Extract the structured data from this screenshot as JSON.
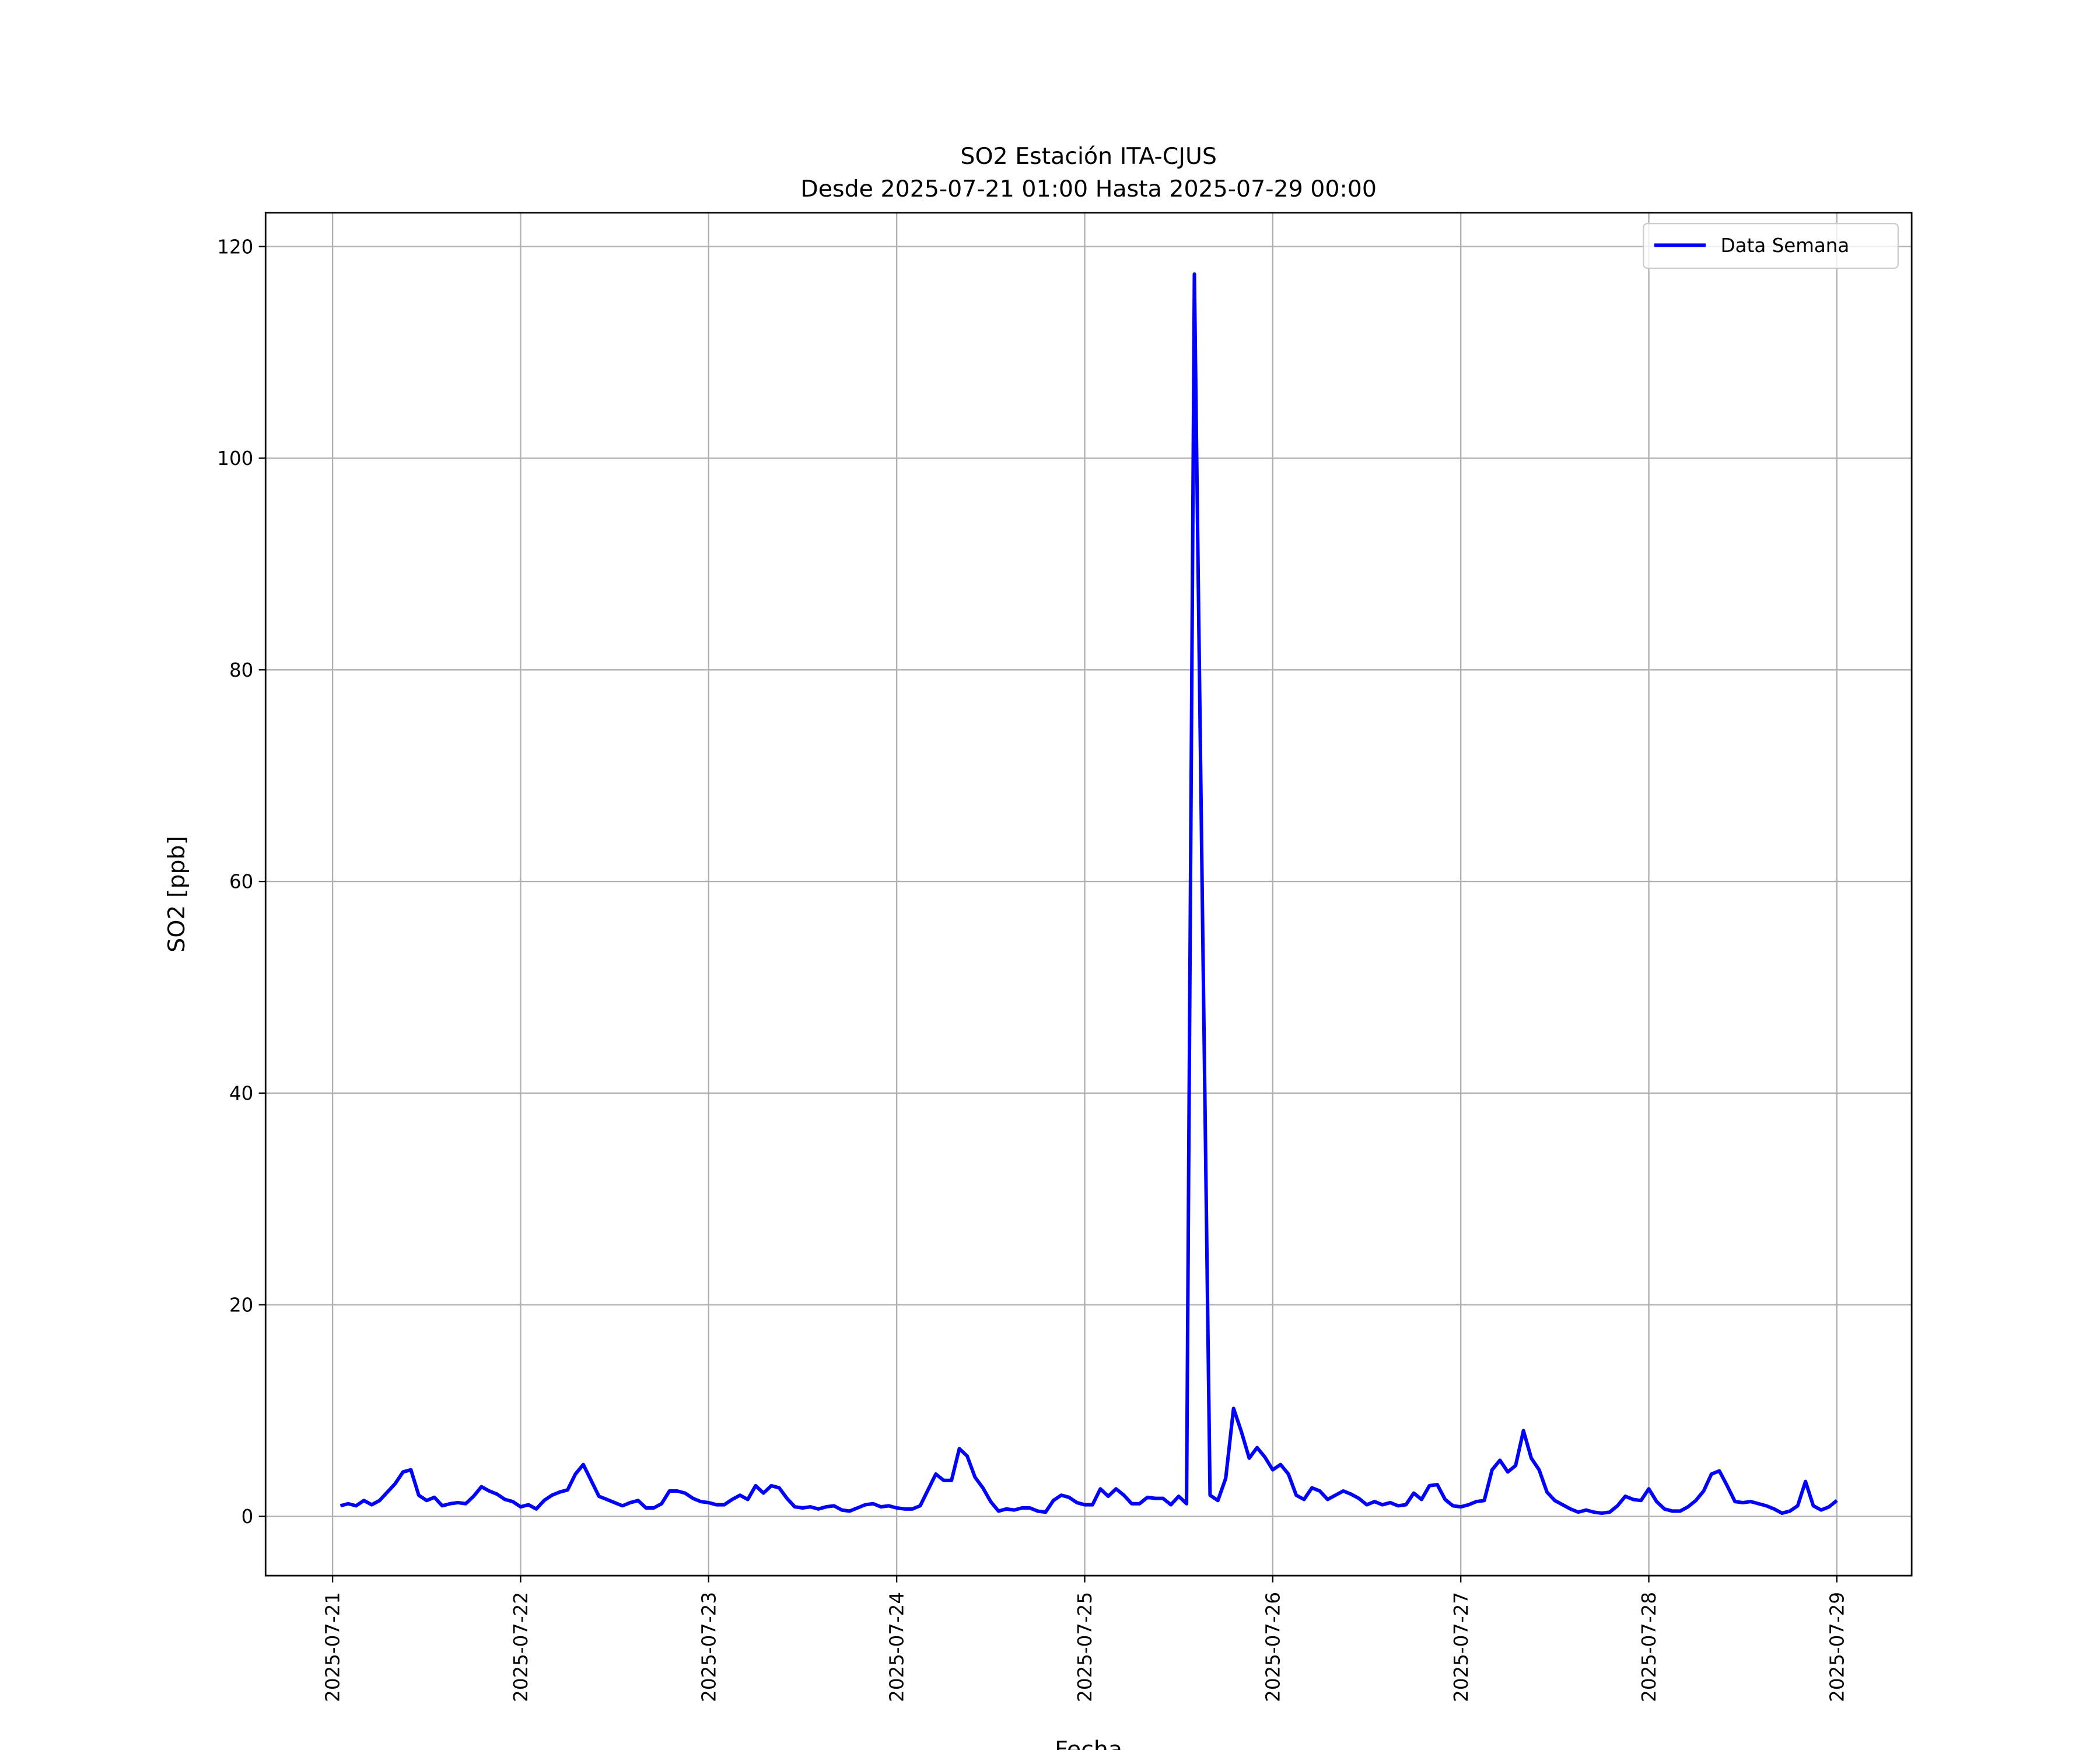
{
  "chart_data": {
    "type": "line",
    "title": "SO2 Estación ITA-CJUS",
    "subtitle": "Desde 2025-07-21 01:00 Hasta 2025-07-29 00:00",
    "x_label": "Fecha",
    "y_label": "SO2 [ppb]",
    "legend": "upper right",
    "grid": true,
    "xlim": [
      "2025-07-20 15:27",
      "2025-07-29 09:33"
    ],
    "xticks": [
      "2025-07-21",
      "2025-07-22",
      "2025-07-23",
      "2025-07-24",
      "2025-07-25",
      "2025-07-26",
      "2025-07-27",
      "2025-07-28",
      "2025-07-29"
    ],
    "ylim": [
      -5.6,
      123.2
    ],
    "yticks": [
      0,
      20,
      40,
      60,
      80,
      100,
      120
    ],
    "x": [
      "2025-07-21 01:00",
      "2025-07-21 02:00",
      "2025-07-21 03:00",
      "2025-07-21 04:00",
      "2025-07-21 05:00",
      "2025-07-21 06:00",
      "2025-07-21 07:00",
      "2025-07-21 08:00",
      "2025-07-21 09:00",
      "2025-07-21 10:00",
      "2025-07-21 11:00",
      "2025-07-21 12:00",
      "2025-07-21 13:00",
      "2025-07-21 14:00",
      "2025-07-21 15:00",
      "2025-07-21 16:00",
      "2025-07-21 17:00",
      "2025-07-21 18:00",
      "2025-07-21 19:00",
      "2025-07-21 20:00",
      "2025-07-21 21:00",
      "2025-07-21 22:00",
      "2025-07-21 23:00",
      "2025-07-22 00:00",
      "2025-07-22 01:00",
      "2025-07-22 02:00",
      "2025-07-22 03:00",
      "2025-07-22 04:00",
      "2025-07-22 05:00",
      "2025-07-22 06:00",
      "2025-07-22 07:00",
      "2025-07-22 08:00",
      "2025-07-22 09:00",
      "2025-07-22 10:00",
      "2025-07-22 11:00",
      "2025-07-22 12:00",
      "2025-07-22 13:00",
      "2025-07-22 14:00",
      "2025-07-22 15:00",
      "2025-07-22 16:00",
      "2025-07-22 17:00",
      "2025-07-22 18:00",
      "2025-07-22 19:00",
      "2025-07-22 20:00",
      "2025-07-22 21:00",
      "2025-07-22 22:00",
      "2025-07-22 23:00",
      "2025-07-23 00:00",
      "2025-07-23 01:00",
      "2025-07-23 02:00",
      "2025-07-23 03:00",
      "2025-07-23 04:00",
      "2025-07-23 05:00",
      "2025-07-23 06:00",
      "2025-07-23 07:00",
      "2025-07-23 08:00",
      "2025-07-23 09:00",
      "2025-07-23 10:00",
      "2025-07-23 11:00",
      "2025-07-23 12:00",
      "2025-07-23 13:00",
      "2025-07-23 14:00",
      "2025-07-23 15:00",
      "2025-07-23 16:00",
      "2025-07-23 17:00",
      "2025-07-23 18:00",
      "2025-07-23 19:00",
      "2025-07-23 20:00",
      "2025-07-23 21:00",
      "2025-07-23 22:00",
      "2025-07-23 23:00",
      "2025-07-24 00:00",
      "2025-07-24 01:00",
      "2025-07-24 02:00",
      "2025-07-24 03:00",
      "2025-07-24 04:00",
      "2025-07-24 05:00",
      "2025-07-24 06:00",
      "2025-07-24 07:00",
      "2025-07-24 08:00",
      "2025-07-24 09:00",
      "2025-07-24 10:00",
      "2025-07-24 11:00",
      "2025-07-24 12:00",
      "2025-07-24 13:00",
      "2025-07-24 14:00",
      "2025-07-24 15:00",
      "2025-07-24 16:00",
      "2025-07-24 17:00",
      "2025-07-24 18:00",
      "2025-07-24 19:00",
      "2025-07-24 20:00",
      "2025-07-24 21:00",
      "2025-07-24 22:00",
      "2025-07-24 23:00",
      "2025-07-25 00:00",
      "2025-07-25 01:00",
      "2025-07-25 02:00",
      "2025-07-25 03:00",
      "2025-07-25 04:00",
      "2025-07-25 05:00",
      "2025-07-25 06:00",
      "2025-07-25 07:00",
      "2025-07-25 08:00",
      "2025-07-25 09:00",
      "2025-07-25 10:00",
      "2025-07-25 11:00",
      "2025-07-25 12:00",
      "2025-07-25 13:00",
      "2025-07-25 14:00",
      "2025-07-25 15:00",
      "2025-07-25 16:00",
      "2025-07-25 17:00",
      "2025-07-25 18:00",
      "2025-07-25 19:00",
      "2025-07-25 20:00",
      "2025-07-25 21:00",
      "2025-07-25 22:00",
      "2025-07-25 23:00",
      "2025-07-26 00:00",
      "2025-07-26 01:00",
      "2025-07-26 02:00",
      "2025-07-26 03:00",
      "2025-07-26 04:00",
      "2025-07-26 05:00",
      "2025-07-26 06:00",
      "2025-07-26 07:00",
      "2025-07-26 08:00",
      "2025-07-26 09:00",
      "2025-07-26 10:00",
      "2025-07-26 11:00",
      "2025-07-26 12:00",
      "2025-07-26 13:00",
      "2025-07-26 14:00",
      "2025-07-26 15:00",
      "2025-07-26 16:00",
      "2025-07-26 17:00",
      "2025-07-26 18:00",
      "2025-07-26 19:00",
      "2025-07-26 20:00",
      "2025-07-26 21:00",
      "2025-07-26 22:00",
      "2025-07-26 23:00",
      "2025-07-27 00:00",
      "2025-07-27 01:00",
      "2025-07-27 02:00",
      "2025-07-27 03:00",
      "2025-07-27 04:00",
      "2025-07-27 05:00",
      "2025-07-27 06:00",
      "2025-07-27 07:00",
      "2025-07-27 08:00",
      "2025-07-27 09:00",
      "2025-07-27 10:00",
      "2025-07-27 11:00",
      "2025-07-27 12:00",
      "2025-07-27 13:00",
      "2025-07-27 14:00",
      "2025-07-27 15:00",
      "2025-07-27 16:00",
      "2025-07-27 17:00",
      "2025-07-27 18:00",
      "2025-07-27 19:00",
      "2025-07-27 20:00",
      "2025-07-27 21:00",
      "2025-07-27 22:00",
      "2025-07-27 23:00",
      "2025-07-28 00:00",
      "2025-07-28 01:00",
      "2025-07-28 02:00",
      "2025-07-28 03:00",
      "2025-07-28 04:00",
      "2025-07-28 05:00",
      "2025-07-28 06:00",
      "2025-07-28 07:00",
      "2025-07-28 08:00",
      "2025-07-28 09:00",
      "2025-07-28 10:00",
      "2025-07-28 11:00",
      "2025-07-28 12:00",
      "2025-07-28 13:00",
      "2025-07-28 14:00",
      "2025-07-28 15:00",
      "2025-07-28 16:00",
      "2025-07-28 17:00",
      "2025-07-28 18:00",
      "2025-07-28 19:00",
      "2025-07-28 20:00",
      "2025-07-28 21:00",
      "2025-07-28 22:00",
      "2025-07-28 23:00",
      "2025-07-29 00:00"
    ],
    "series": [
      {
        "name": "Data Semana",
        "color": "#0000ff",
        "values": [
          1.0,
          1.2,
          1.0,
          1.5,
          1.1,
          1.5,
          2.3,
          3.1,
          4.2,
          4.4,
          2.0,
          1.5,
          1.8,
          1.0,
          1.2,
          1.3,
          1.2,
          1.9,
          2.8,
          2.4,
          2.1,
          1.6,
          1.4,
          0.9,
          1.1,
          0.7,
          1.5,
          2.0,
          2.3,
          2.5,
          4.0,
          4.9,
          3.4,
          1.9,
          1.6,
          1.3,
          1.0,
          1.3,
          1.5,
          0.8,
          0.8,
          1.2,
          2.4,
          2.4,
          2.2,
          1.7,
          1.4,
          1.3,
          1.1,
          1.1,
          1.6,
          2.0,
          1.6,
          2.9,
          2.2,
          2.9,
          2.7,
          1.7,
          0.9,
          0.8,
          0.9,
          0.7,
          0.9,
          1.0,
          0.6,
          0.5,
          0.8,
          1.1,
          1.2,
          0.9,
          1.0,
          0.8,
          0.7,
          0.7,
          1.0,
          2.5,
          4.0,
          3.4,
          3.4,
          6.4,
          5.7,
          3.7,
          2.7,
          1.4,
          0.5,
          0.7,
          0.6,
          0.8,
          0.8,
          0.5,
          0.4,
          1.5,
          2.0,
          1.8,
          1.3,
          1.1,
          1.1,
          2.6,
          1.9,
          2.6,
          2.0,
          1.2,
          1.2,
          1.8,
          1.7,
          1.7,
          1.1,
          1.9,
          1.2,
          117.4,
          59.0,
          2.0,
          1.5,
          3.6,
          10.2,
          8.0,
          5.5,
          6.5,
          5.6,
          4.4,
          4.9,
          4.0,
          2.0,
          1.6,
          2.7,
          2.4,
          1.6,
          2.0,
          2.4,
          2.1,
          1.7,
          1.1,
          1.4,
          1.1,
          1.3,
          1.0,
          1.1,
          2.2,
          1.6,
          2.9,
          3.0,
          1.6,
          1.0,
          0.9,
          1.1,
          1.4,
          1.5,
          4.4,
          5.3,
          4.2,
          4.8,
          8.1,
          5.5,
          4.4,
          2.3,
          1.5,
          1.1,
          0.7,
          0.4,
          0.6,
          0.4,
          0.3,
          0.4,
          1.0,
          1.9,
          1.6,
          1.5,
          2.6,
          1.4,
          0.7,
          0.5,
          0.5,
          0.9,
          1.5,
          2.4,
          4.0,
          4.3,
          2.9,
          1.4,
          1.3,
          1.4,
          1.2,
          1.0,
          0.7,
          0.3,
          0.5,
          1.0,
          3.3,
          1.0,
          0.6,
          0.9,
          1.5
        ]
      }
    ]
  }
}
